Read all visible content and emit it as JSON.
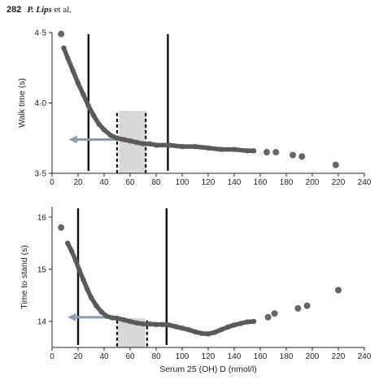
{
  "header": {
    "page_number": "282",
    "author_main": "P. Lips",
    "author_rest": " et al."
  },
  "colors": {
    "curve": "#5a5a5a",
    "outlier": "#666666",
    "threshold_line": "#111111",
    "arrow": "#8a9bb5",
    "shade_fill": "#d8d8d8",
    "axis": "#222222"
  },
  "chart_data": [
    {
      "id": "walk",
      "type": "scatter",
      "xlabel": "",
      "ylabel": "Walk time (s)",
      "xlim": [
        0,
        240
      ],
      "ylim": [
        3.5,
        4.5
      ],
      "x_ticks": [
        0,
        20,
        40,
        60,
        80,
        100,
        120,
        140,
        160,
        180,
        200,
        220,
        240
      ],
      "y_ticks": [
        {
          "value": 3.5,
          "label": "3·5"
        },
        {
          "value": 4.0,
          "label": "4·0"
        },
        {
          "value": 4.5,
          "label": "4·5"
        }
      ],
      "series": [
        {
          "role": "fitted-curve",
          "x": [
            9,
            12,
            16,
            20,
            24,
            28,
            32,
            36,
            40,
            45,
            50,
            55,
            60,
            65,
            70,
            75,
            80,
            90,
            100,
            110,
            120,
            130,
            140,
            150,
            155
          ],
          "y": [
            4.39,
            4.32,
            4.23,
            4.14,
            4.06,
            3.98,
            3.91,
            3.85,
            3.81,
            3.77,
            3.75,
            3.74,
            3.73,
            3.72,
            3.71,
            3.71,
            3.7,
            3.7,
            3.69,
            3.69,
            3.68,
            3.67,
            3.67,
            3.66,
            3.66
          ]
        },
        {
          "role": "outliers",
          "x": [
            7,
            165,
            172,
            185,
            192,
            218
          ],
          "y": [
            4.49,
            3.65,
            3.65,
            3.63,
            3.62,
            3.56
          ]
        }
      ],
      "vertical_lines": [
        28,
        89
      ],
      "dashed_lines": [
        50,
        72
      ],
      "shaded_band": {
        "x": [
          52,
          72
        ],
        "y": [
          3.5,
          3.94
        ]
      },
      "arrow": {
        "x_from": 50,
        "x_to": 13,
        "y": 3.74
      }
    },
    {
      "id": "stand",
      "type": "scatter",
      "xlabel": "Serum 25 (OH) D (nmol/l)",
      "ylabel": "Time to stand (s)",
      "xlim": [
        0,
        240
      ],
      "ylim": [
        13.5,
        16.2
      ],
      "x_ticks": [
        0,
        20,
        40,
        60,
        80,
        100,
        120,
        140,
        160,
        180,
        200,
        220,
        240
      ],
      "y_ticks": [
        {
          "value": 14,
          "label": "14"
        },
        {
          "value": 15,
          "label": "15"
        },
        {
          "value": 16,
          "label": "16"
        }
      ],
      "series": [
        {
          "role": "fitted-curve",
          "x": [
            12,
            15,
            18,
            21,
            24,
            27,
            30,
            34,
            38,
            42,
            46,
            50,
            55,
            60,
            65,
            70,
            75,
            80,
            85,
            90,
            95,
            100,
            105,
            110,
            115,
            120,
            125,
            130,
            135,
            140,
            145,
            150,
            155
          ],
          "y": [
            15.5,
            15.35,
            15.18,
            14.98,
            14.8,
            14.62,
            14.46,
            14.3,
            14.18,
            14.1,
            14.07,
            14.06,
            14.03,
            14.0,
            13.97,
            13.95,
            13.95,
            13.94,
            13.94,
            13.93,
            13.9,
            13.87,
            13.84,
            13.8,
            13.77,
            13.76,
            13.79,
            13.84,
            13.89,
            13.93,
            13.96,
            13.99,
            14.0
          ]
        },
        {
          "role": "outliers",
          "x": [
            7,
            166,
            171,
            189,
            196,
            220
          ],
          "y": [
            15.8,
            14.08,
            14.15,
            14.25,
            14.3,
            14.6
          ]
        }
      ],
      "vertical_lines": [
        20,
        88
      ],
      "dashed_lines": [
        50,
        73
      ],
      "shaded_band": {
        "x": [
          51,
          71
        ],
        "y": [
          13.5,
          14.05
        ]
      },
      "arrow": {
        "x_from": 50,
        "x_to": 12,
        "y": 14.08
      }
    }
  ]
}
